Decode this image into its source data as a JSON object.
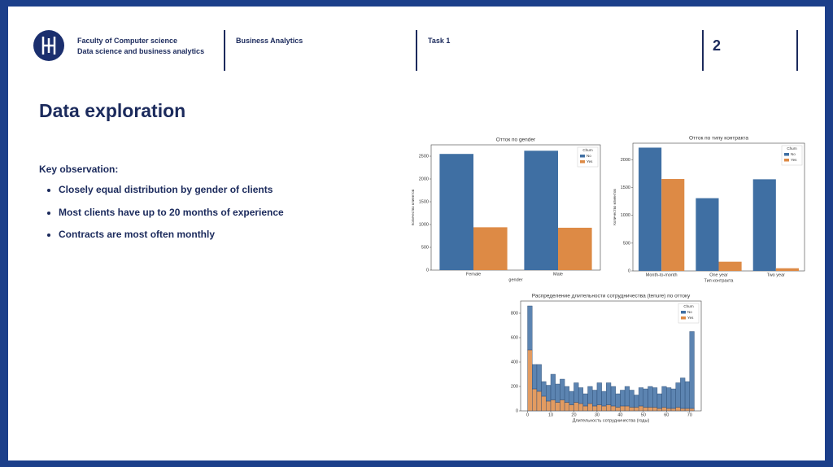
{
  "header": {
    "faculty": "Faculty of Computer science",
    "program": "Data science and business analytics",
    "course": "Business Analytics",
    "task": "Task 1",
    "page": 2
  },
  "title": "Data exploration",
  "body": {
    "heading": "Key observation:",
    "bullets": [
      "Closely equal distribution by gender of clients",
      "Most clients have up to 20 months of experience",
      "Contracts are most often monthly"
    ]
  },
  "chart_data": [
    {
      "type": "bar",
      "title": "Отток по gender",
      "xlabel": "gender",
      "ylabel": "Количество клиентов",
      "legend_title": "Churn",
      "categories": [
        "Female",
        "Male"
      ],
      "series": [
        {
          "name": "No",
          "color": "#3f6fa3",
          "values": [
            2550,
            2620
          ]
        },
        {
          "name": "Yes",
          "color": "#dd8a45",
          "values": [
            940,
            930
          ]
        }
      ],
      "ylim": [
        0,
        2750
      ],
      "yticks": [
        0,
        500,
        1000,
        1500,
        2000,
        2500
      ]
    },
    {
      "type": "bar",
      "title": "Отток по типу контракта",
      "xlabel": "Тип контракта",
      "ylabel": "Количество клиентов",
      "legend_title": "Churn",
      "categories": [
        "Month-to-month",
        "One year",
        "Two year"
      ],
      "series": [
        {
          "name": "No",
          "color": "#3f6fa3",
          "values": [
            2220,
            1310,
            1650
          ]
        },
        {
          "name": "Yes",
          "color": "#dd8a45",
          "values": [
            1655,
            166,
            48
          ]
        }
      ],
      "ylim": [
        0,
        2300
      ],
      "yticks": [
        0,
        500,
        1000,
        1500,
        2000
      ]
    },
    {
      "type": "histogram",
      "title": "Распределение длительности сотрудничества (tenure) по оттоку",
      "xlabel": "Длительность сотрудничества (годы)",
      "legend_title": "Churn",
      "bins": [
        0,
        2,
        4,
        6,
        8,
        10,
        12,
        14,
        16,
        18,
        20,
        22,
        24,
        26,
        28,
        30,
        32,
        34,
        36,
        38,
        40,
        42,
        44,
        46,
        48,
        50,
        52,
        54,
        56,
        58,
        60,
        62,
        64,
        66,
        68,
        70,
        72
      ],
      "series": [
        {
          "name": "No",
          "color": "#3f6fa3",
          "values": [
            360,
            200,
            220,
            120,
            130,
            210,
            150,
            170,
            130,
            110,
            160,
            130,
            100,
            140,
            130,
            180,
            120,
            180,
            160,
            110,
            130,
            160,
            140,
            100,
            150,
            150,
            170,
            160,
            120,
            170,
            170,
            160,
            200,
            250,
            220,
            630
          ]
        },
        {
          "name": "Yes",
          "color": "#dd8a45",
          "values": [
            500,
            180,
            160,
            120,
            80,
            90,
            70,
            90,
            70,
            50,
            70,
            60,
            40,
            60,
            40,
            50,
            40,
            50,
            40,
            30,
            40,
            40,
            30,
            30,
            40,
            30,
            30,
            30,
            20,
            30,
            20,
            20,
            30,
            20,
            20,
            20
          ]
        }
      ],
      "xlim": [
        -3,
        75
      ],
      "xticks": [
        0,
        10,
        20,
        30,
        40,
        50,
        60,
        70
      ],
      "ylim": [
        0,
        900
      ],
      "yticks": [
        0,
        200,
        400,
        600,
        800
      ]
    }
  ]
}
